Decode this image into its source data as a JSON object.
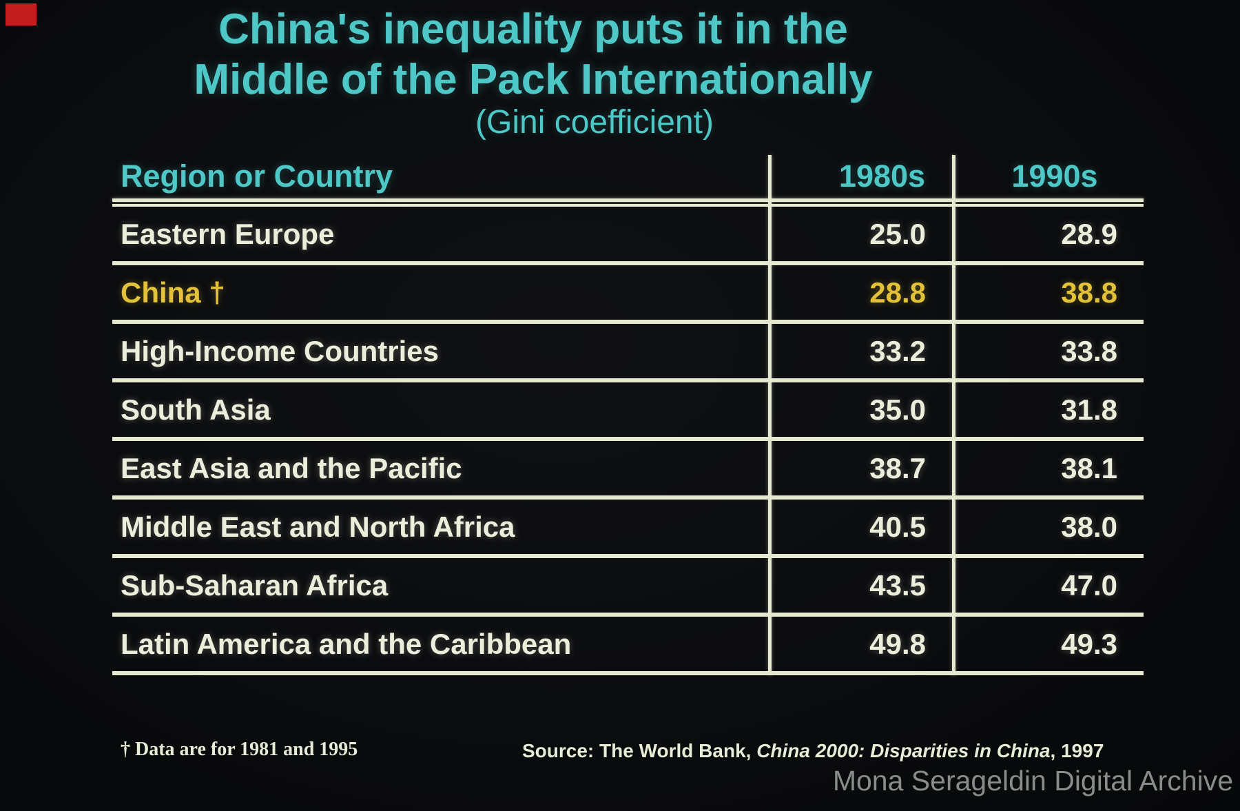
{
  "slide": {
    "title_line1": "China's inequality puts it in the",
    "title_line2": "Middle of the Pack Internationally",
    "subtitle": "(Gini coefficient)",
    "footnote": "† Data are for 1981 and 1995",
    "source_prefix": "Source: The World Bank, ",
    "source_title": "China 2000: Disparities in China",
    "source_suffix": ", 1997",
    "watermark": "Mona Serageldin Digital Archive"
  },
  "table": {
    "columns": [
      "Region or Country",
      "1980s",
      "1990s"
    ],
    "rows": [
      {
        "label": "Eastern Europe",
        "v1980s": "25.0",
        "v1990s": "28.9",
        "highlight": false
      },
      {
        "label": "China †",
        "v1980s": "28.8",
        "v1990s": "38.8",
        "highlight": true
      },
      {
        "label": "High-Income Countries",
        "v1980s": "33.2",
        "v1990s": "33.8",
        "highlight": false
      },
      {
        "label": "South Asia",
        "v1980s": "35.0",
        "v1990s": "31.8",
        "highlight": false
      },
      {
        "label": "East Asia and the Pacific",
        "v1980s": "38.7",
        "v1990s": "38.1",
        "highlight": false
      },
      {
        "label": "Middle East and North Africa",
        "v1980s": "40.5",
        "v1990s": "38.0",
        "highlight": false
      },
      {
        "label": "Sub-Saharan Africa",
        "v1980s": "43.5",
        "v1990s": "47.0",
        "highlight": false
      },
      {
        "label": "Latin America and the Caribbean",
        "v1980s": "49.8",
        "v1990s": "49.3",
        "highlight": false
      }
    ]
  },
  "colors": {
    "background": "#0b0c0e",
    "accent_cyan": "#4ec7c7",
    "cream_text": "#eaeeda",
    "line_cream": "#e4e9d0",
    "highlight_yellow": "#e3c23a",
    "watermark_gray": "#888d8a",
    "corner_mark_red": "#c41d1d"
  },
  "chart_data": {
    "type": "table",
    "title": "China's inequality puts it in the Middle of the Pack Internationally",
    "subtitle": "(Gini coefficient)",
    "columns": [
      "Region or Country",
      "1980s",
      "1990s"
    ],
    "categories": [
      "Eastern Europe",
      "China †",
      "High-Income Countries",
      "South Asia",
      "East Asia and the Pacific",
      "Middle East and North Africa",
      "Sub-Saharan Africa",
      "Latin America and the Caribbean"
    ],
    "series": [
      {
        "name": "1980s",
        "values": [
          25.0,
          28.8,
          33.2,
          35.0,
          38.7,
          40.5,
          43.5,
          49.8
        ]
      },
      {
        "name": "1990s",
        "values": [
          28.9,
          38.8,
          33.8,
          31.8,
          38.1,
          38.0,
          47.0,
          49.3
        ]
      }
    ],
    "highlighted_row": "China †",
    "footnote": "† Data are for 1981 and 1995",
    "source": "Source: The World Bank, China 2000: Disparities in China, 1997"
  }
}
